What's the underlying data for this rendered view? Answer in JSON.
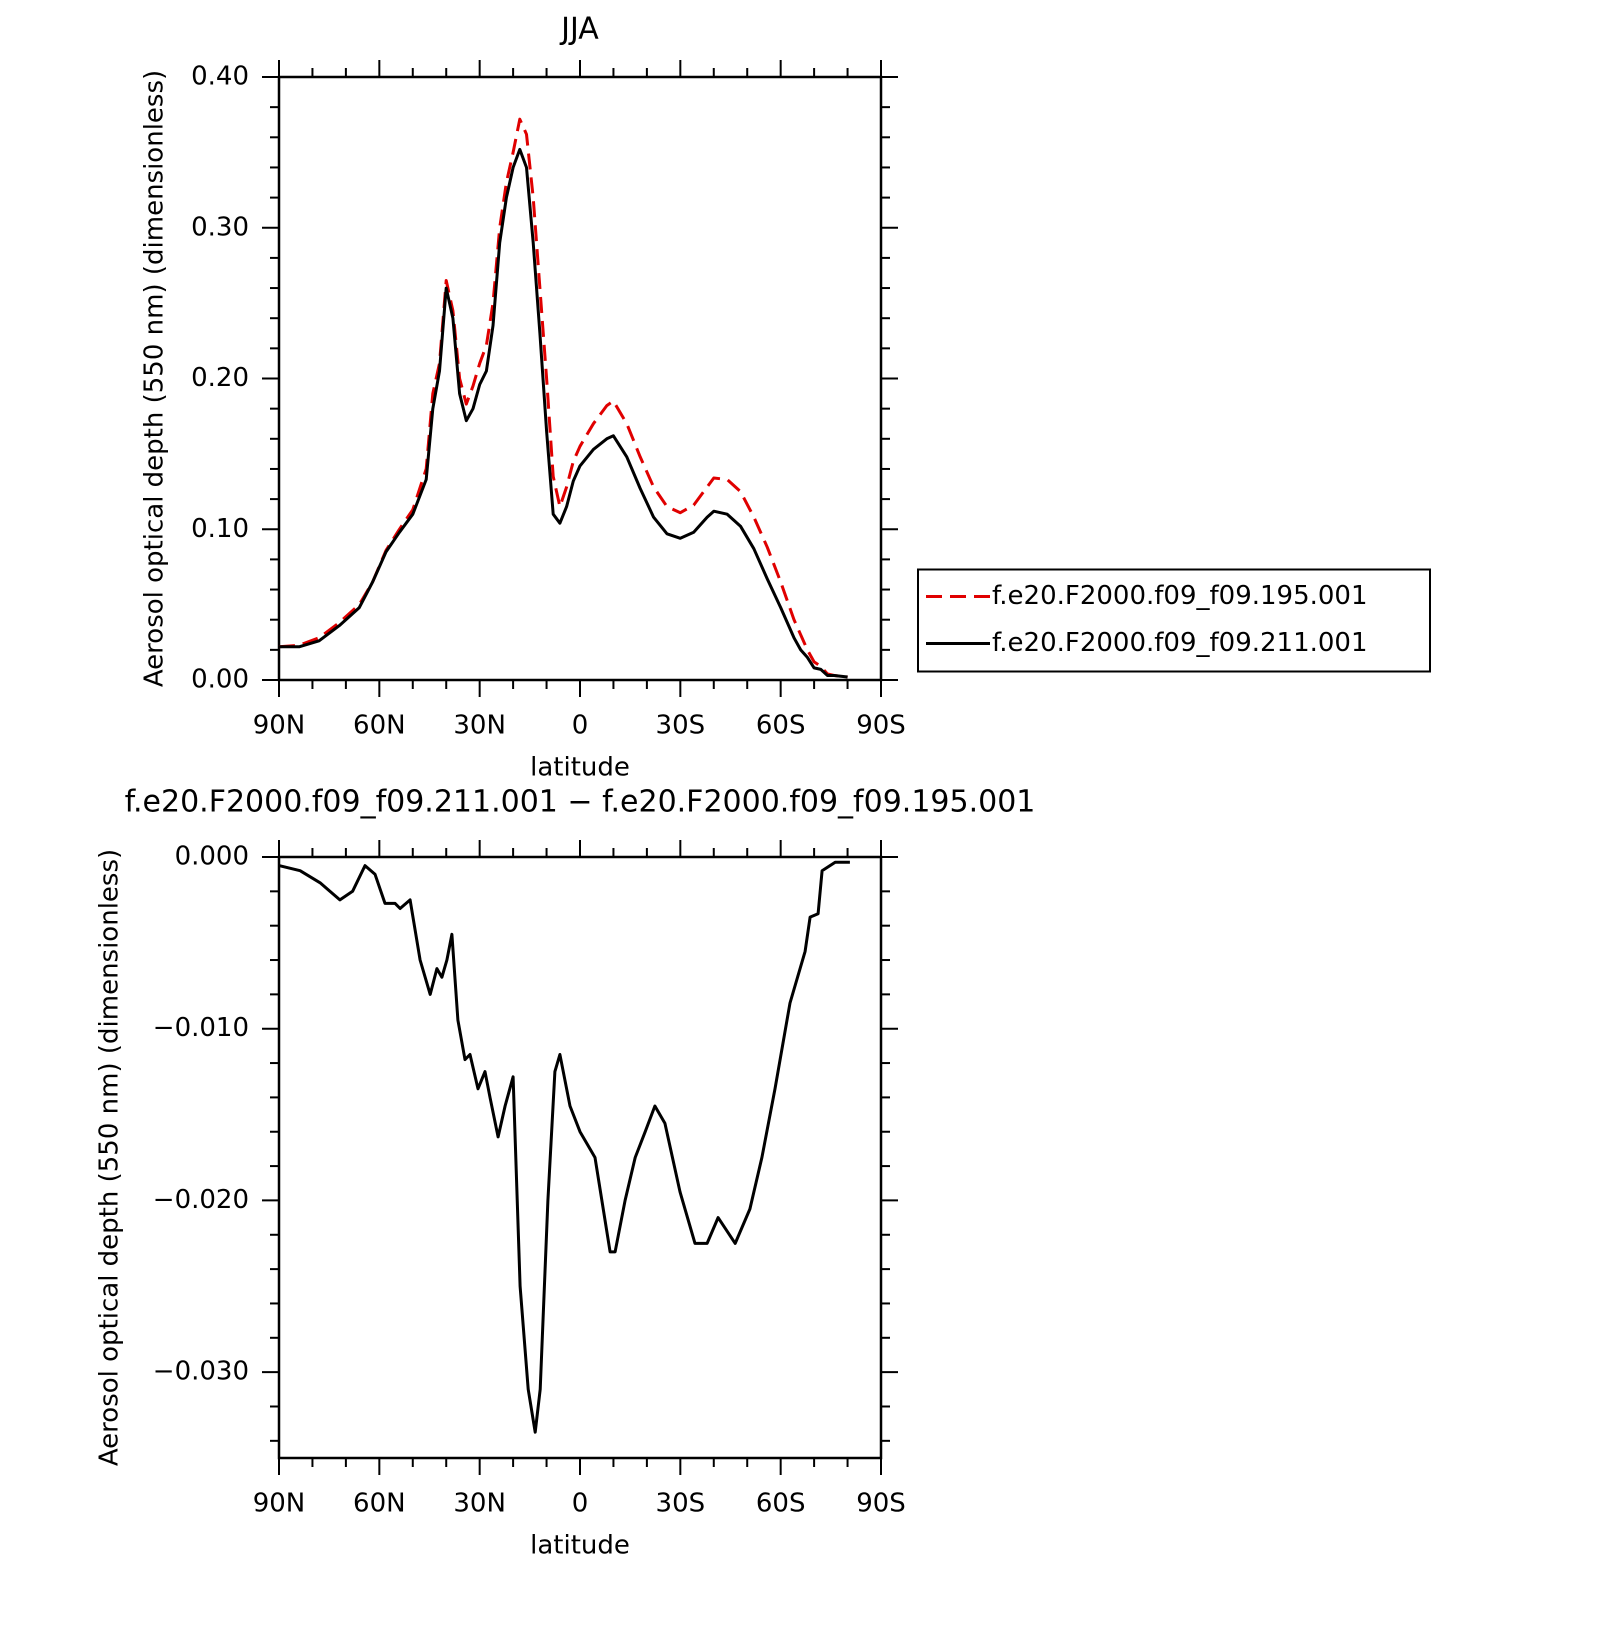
{
  "chart_data": [
    {
      "type": "line",
      "title": "JJA",
      "xlabel": "latitude",
      "ylabel": "Aerosol optical depth (550 nm) (dimensionless)",
      "x": [
        90,
        84,
        78,
        72,
        66,
        62,
        58,
        54,
        50,
        46,
        44,
        42,
        40,
        38,
        36,
        34,
        32,
        30,
        28,
        26,
        24,
        22,
        20,
        18,
        16,
        14,
        12,
        10,
        8,
        6,
        4,
        2,
        0,
        -4,
        -8,
        -10,
        -14,
        -18,
        -22,
        -26,
        -30,
        -34,
        -38,
        -40,
        -44,
        -48,
        -52,
        -56,
        -60,
        -64,
        -66,
        -68,
        -70,
        -72,
        -74,
        -76,
        -80
      ],
      "series": [
        {
          "name": "f.e20.F2000.f09_f09.195.001",
          "color": "#e00000",
          "linestyle": "dashed",
          "values": [
            0.022,
            0.023,
            0.028,
            0.038,
            0.05,
            0.065,
            0.086,
            0.1,
            0.113,
            0.14,
            0.19,
            0.21,
            0.265,
            0.245,
            0.2,
            0.183,
            0.195,
            0.21,
            0.222,
            0.25,
            0.3,
            0.33,
            0.35,
            0.372,
            0.362,
            0.32,
            0.26,
            0.2,
            0.135,
            0.115,
            0.128,
            0.145,
            0.155,
            0.17,
            0.182,
            0.185,
            0.17,
            0.148,
            0.128,
            0.115,
            0.111,
            0.116,
            0.128,
            0.134,
            0.133,
            0.125,
            0.108,
            0.088,
            0.065,
            0.04,
            0.03,
            0.02,
            0.012,
            0.009,
            0.004,
            0.003,
            0.002
          ]
        },
        {
          "name": "f.e20.F2000.f09_f09.211.001",
          "color": "#000000",
          "linestyle": "solid",
          "values": [
            0.022,
            0.022,
            0.026,
            0.036,
            0.048,
            0.065,
            0.085,
            0.098,
            0.11,
            0.133,
            0.18,
            0.205,
            0.26,
            0.24,
            0.19,
            0.172,
            0.18,
            0.196,
            0.205,
            0.235,
            0.29,
            0.32,
            0.34,
            0.352,
            0.34,
            0.29,
            0.23,
            0.165,
            0.11,
            0.104,
            0.115,
            0.132,
            0.142,
            0.153,
            0.16,
            0.162,
            0.148,
            0.127,
            0.108,
            0.097,
            0.094,
            0.098,
            0.108,
            0.112,
            0.11,
            0.102,
            0.087,
            0.067,
            0.048,
            0.028,
            0.02,
            0.015,
            0.008,
            0.007,
            0.003,
            0.003,
            0.002
          ]
        }
      ],
      "xlim": [
        90,
        -90
      ],
      "ylim": [
        0,
        0.4
      ],
      "xticks": [
        {
          "value": 90,
          "label": "90N"
        },
        {
          "value": 60,
          "label": "60N"
        },
        {
          "value": 30,
          "label": "30N"
        },
        0,
        {
          "value": -30,
          "label": "30S"
        },
        {
          "value": -60,
          "label": "60S"
        },
        {
          "value": -90,
          "label": "90S"
        }
      ],
      "yticks": [
        {
          "value": 0,
          "label": "0.00"
        },
        {
          "value": 0.1,
          "label": "0.10"
        },
        {
          "value": 0.2,
          "label": "0.20"
        },
        {
          "value": 0.3,
          "label": "0.30"
        },
        {
          "value": 0.4,
          "label": "0.40"
        }
      ],
      "xminorticks": [
        80,
        70,
        50,
        40,
        20,
        10,
        -10,
        -20,
        -40,
        -50,
        -70,
        -80
      ],
      "yminorticks": [
        0.02,
        0.04,
        0.06,
        0.08,
        0.12,
        0.14,
        0.16,
        0.18,
        0.22,
        0.24,
        0.26,
        0.28,
        0.32,
        0.34,
        0.36,
        0.38
      ],
      "legend": "right"
    },
    {
      "type": "line",
      "title": "f.e20.F2000.f09_f09.211.001 − f.e20.F2000.f09_f09.195.001",
      "xlabel": "latitude",
      "ylabel": "Aerosol optical depth (550 nm) (dimensionless)",
      "x": [
        90,
        83.7,
        77.7,
        71.8,
        68,
        64.3,
        61.3,
        58.3,
        55.3,
        53.8,
        50.8,
        47.8,
        44.8,
        42.8,
        41.3,
        39.8,
        38.3,
        36.5,
        34.4,
        32.9,
        30.5,
        28.4,
        26.9,
        24.5,
        22.4,
        20,
        17.9,
        15.5,
        13.4,
        11.9,
        9.6,
        7.5,
        6,
        3,
        0,
        -4.5,
        -9,
        -10.5,
        -13.5,
        -16.5,
        -19.5,
        -22.4,
        -25.4,
        -29.9,
        -34.4,
        -38,
        -41.3,
        -46.4,
        -50.8,
        -54.4,
        -58.3,
        -62.8,
        -67.3,
        -68.8,
        -71.2,
        -72.4,
        -76.3,
        -80.7
      ],
      "values": [
        -0.0005,
        -0.0008,
        -0.0015,
        -0.0025,
        -0.002,
        -0.0005,
        -0.001,
        -0.0027,
        -0.0027,
        -0.003,
        -0.0025,
        -0.006,
        -0.008,
        -0.0065,
        -0.007,
        -0.006,
        -0.0045,
        -0.0095,
        -0.0118,
        -0.0115,
        -0.0135,
        -0.0125,
        -0.014,
        -0.0163,
        -0.0145,
        -0.0128,
        -0.025,
        -0.031,
        -0.0335,
        -0.031,
        -0.02,
        -0.0125,
        -0.0115,
        -0.0145,
        -0.016,
        -0.0175,
        -0.023,
        -0.023,
        -0.02,
        -0.0175,
        -0.016,
        -0.0145,
        -0.0155,
        -0.0195,
        -0.0225,
        -0.0225,
        -0.021,
        -0.0225,
        -0.0205,
        -0.0175,
        -0.0135,
        -0.0085,
        -0.0055,
        -0.0035,
        -0.0033,
        -0.0008,
        -0.0003,
        -0.0003
      ],
      "color": "#000000",
      "xlim": [
        90,
        -90
      ],
      "ylim": [
        -0.035,
        0
      ],
      "xticks": [
        {
          "value": 90,
          "label": "90N"
        },
        {
          "value": 60,
          "label": "60N"
        },
        {
          "value": 30,
          "label": "30N"
        },
        0,
        {
          "value": -30,
          "label": "30S"
        },
        {
          "value": -60,
          "label": "60S"
        },
        {
          "value": -90,
          "label": "90S"
        }
      ],
      "yticks": [
        {
          "value": 0,
          "label": "0.000"
        },
        {
          "value": -0.01,
          "label": "−0.010"
        },
        {
          "value": -0.02,
          "label": "−0.020"
        },
        {
          "value": -0.03,
          "label": "−0.030"
        }
      ],
      "xminorticks": [
        80,
        70,
        50,
        40,
        20,
        10,
        -10,
        -20,
        -40,
        -50,
        -70,
        -80
      ],
      "yminorticks": [
        -0.002,
        -0.004,
        -0.006,
        -0.008,
        -0.012,
        -0.014,
        -0.016,
        -0.018,
        -0.022,
        -0.024,
        -0.026,
        -0.028,
        -0.032,
        -0.034
      ]
    }
  ]
}
